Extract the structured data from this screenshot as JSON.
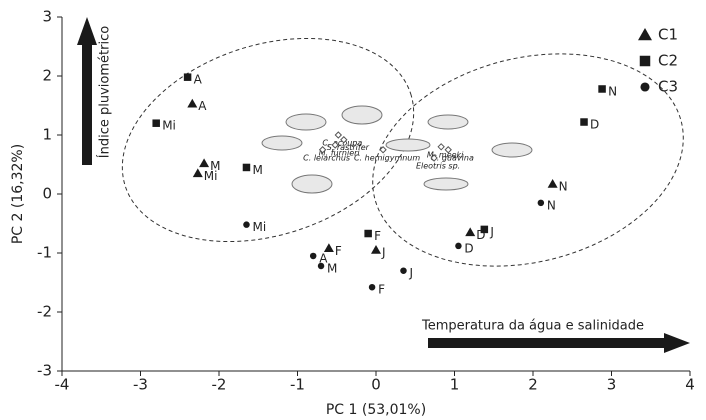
{
  "chart_data": {
    "type": "scatter",
    "x_label": "PC 1 (53,01%)",
    "y_label": "PC 2 (16,32%)",
    "xlim": [
      -4,
      4
    ],
    "xticks": [
      -4,
      -3,
      -2,
      -1,
      0,
      1,
      2,
      3,
      4
    ],
    "ylim": [
      -3,
      3
    ],
    "yticks": [
      -3,
      -2,
      -1,
      0,
      1,
      2,
      3
    ],
    "legend_position": "upper right",
    "series": [
      {
        "name": "C1",
        "marker": "triangle",
        "color": "#1a1a1a",
        "labels": [
          "A",
          "M",
          "Mi",
          "F",
          "J",
          "D",
          "N"
        ],
        "x": [
          -2.34,
          -2.19,
          -2.27,
          -0.6,
          0.0,
          1.2,
          2.25
        ],
        "values": [
          1.53,
          0.52,
          0.35,
          -0.92,
          -0.95,
          -0.65,
          0.17
        ]
      },
      {
        "name": "C2",
        "marker": "square",
        "color": "#1a1a1a",
        "labels": [
          "A",
          "Mi",
          "M",
          "F",
          "J",
          "D",
          "N"
        ],
        "x": [
          -2.4,
          -2.8,
          -1.65,
          -0.1,
          1.38,
          2.65,
          2.88
        ],
        "values": [
          1.98,
          1.2,
          0.45,
          -0.67,
          -0.6,
          1.22,
          1.78
        ]
      },
      {
        "name": "C3",
        "marker": "circle",
        "color": "#1a1a1a",
        "labels": [
          "Mi",
          "A",
          "M",
          "F",
          "J",
          "D",
          "N"
        ],
        "x": [
          -1.65,
          -0.8,
          -0.7,
          -0.05,
          0.35,
          1.05,
          2.1
        ],
        "values": [
          -0.52,
          -1.05,
          -1.22,
          -1.58,
          -1.3,
          -0.88,
          -0.15
        ]
      }
    ],
    "loadings": {
      "labels": [
        "C. acoupa",
        "S. rastrifer",
        "M. furnieri",
        "C. leiarchus",
        "M. meeki",
        "C. hemigymnum",
        "G. guavina",
        "Eleotris sp."
      ],
      "x": [
        -0.48,
        -0.41,
        -0.52,
        -0.68,
        0.83,
        0.09,
        0.92,
        0.74
      ],
      "values": [
        1.0,
        0.92,
        0.83,
        0.75,
        0.8,
        0.75,
        0.75,
        0.61
      ]
    },
    "annotations": [
      "Índice pluviométrico",
      "Temperatura da água e salinidade"
    ]
  }
}
